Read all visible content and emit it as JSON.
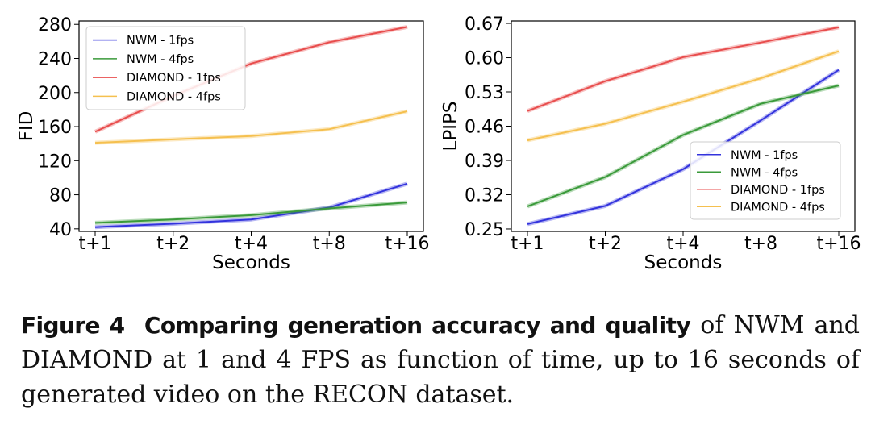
{
  "chart_data": [
    {
      "type": "line",
      "title": "",
      "xlabel": "Seconds",
      "ylabel": "FID",
      "categories": [
        "t+1",
        "t+2",
        "t+4",
        "t+8",
        "t+16"
      ],
      "yticks": [
        40,
        80,
        120,
        160,
        200,
        240,
        280
      ],
      "ylim": [
        37,
        284
      ],
      "grid": false,
      "legend_position": "top-left",
      "series": [
        {
          "name": "NWM - 1fps",
          "color": "#3333dd",
          "values": [
            42,
            46,
            51,
            65,
            93
          ]
        },
        {
          "name": "NWM - 4fps",
          "color": "#3a9a3a",
          "values": [
            47,
            51,
            56,
            64,
            71
          ]
        },
        {
          "name": "DIAMOND - 1fps",
          "color": "#e84d4d",
          "values": [
            154,
            196,
            234,
            259,
            277
          ]
        },
        {
          "name": "DIAMOND - 4fps",
          "color": "#f5c04f",
          "values": [
            141,
            145,
            149,
            157,
            178
          ]
        }
      ]
    },
    {
      "type": "line",
      "title": "",
      "xlabel": "Seconds",
      "ylabel": "LPIPS",
      "categories": [
        "t+1",
        "t+2",
        "t+4",
        "t+8",
        "t+16"
      ],
      "yticks": [
        "0.25",
        "0.32",
        "0.39",
        "0.46",
        "0.53",
        "0.60",
        "0.67"
      ],
      "ylim": [
        0.245,
        0.675
      ],
      "grid": false,
      "legend_position": "bottom-right",
      "series": [
        {
          "name": "NWM - 1fps",
          "color": "#3333dd",
          "values": [
            0.26,
            0.297,
            0.372,
            0.472,
            0.575
          ]
        },
        {
          "name": "NWM - 4fps",
          "color": "#3a9a3a",
          "values": [
            0.296,
            0.356,
            0.442,
            0.506,
            0.543
          ]
        },
        {
          "name": "DIAMOND - 1fps",
          "color": "#e84d4d",
          "values": [
            0.491,
            0.552,
            0.601,
            0.631,
            0.662
          ]
        },
        {
          "name": "DIAMOND - 4fps",
          "color": "#f5c04f",
          "values": [
            0.431,
            0.465,
            0.51,
            0.558,
            0.613
          ]
        }
      ]
    }
  ],
  "caption": {
    "label": "Figure 4",
    "bold": "Comparing generation accuracy and quality",
    "text": "of NWM and DIAMOND at 1 and 4 FPS as function of time, up to 16 seconds of generated video on the RECON dataset."
  }
}
